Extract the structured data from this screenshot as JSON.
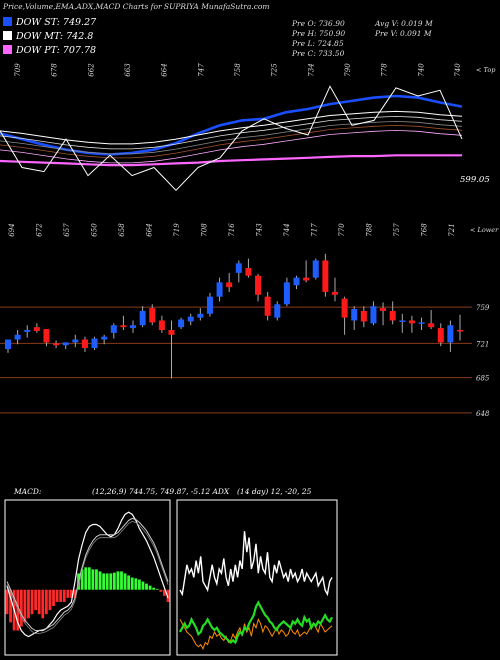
{
  "header": {
    "title": "Price,Volume,EMA,ADX,MACD Charts for SUPRIYA MunafaSutra.com"
  },
  "legend": [
    {
      "label": "DOW ST: 749.27",
      "color": "#1a4fff"
    },
    {
      "label": "DOW MT: 742.8",
      "color": "#ffffff"
    },
    {
      "label": "DOW PT: 707.78",
      "color": "#ff66ff"
    }
  ],
  "quote": {
    "open": "Pre   O: 736.90",
    "high": "Pre   H: 750.90",
    "low": "Pre   L: 724.85",
    "close": "Pre   C: 733.50",
    "avg_vol": "Avg V: 0.019 M",
    "pre_vol": "Pre   V: 0.091 M"
  },
  "upper_right_label": "< Top",
  "lower_right_label": "< Lower",
  "ema_last_label": "599.05",
  "macd_label": "MACD:",
  "macd_text": "(12,26,9) 744.75, 749.87, -5.12 ADX",
  "adx_text": "(14 day) 12, -20, 25",
  "chart_data": [
    {
      "type": "line",
      "name": "ema",
      "top_labels": [
        "709",
        "678",
        "662",
        "663",
        "664",
        "747",
        "758",
        "725",
        "734",
        "790",
        "778",
        "740",
        "740"
      ],
      "series": [
        {
          "name": "DOW ST",
          "color": "#1a4fff",
          "values": [
            742,
            735,
            728,
            722,
            718,
            716,
            718,
            722,
            730,
            742,
            752,
            758,
            760,
            768,
            772,
            778,
            782,
            786,
            788,
            786,
            780,
            775
          ]
        },
        {
          "name": "DOW MT",
          "color": "#ffffff",
          "values": [
            745,
            742,
            738,
            734,
            731,
            729,
            729,
            731,
            735,
            740,
            745,
            749,
            752,
            756,
            760,
            764,
            766,
            768,
            769,
            768,
            765,
            763
          ]
        },
        {
          "name": "DOW PT",
          "color": "#ff66ff",
          "values": [
            708,
            707,
            706,
            705,
            704,
            703,
            703,
            704,
            705,
            706,
            708,
            709,
            710,
            711,
            712,
            713,
            714,
            714,
            715,
            715,
            715,
            715
          ]
        },
        {
          "name": "price",
          "color": "#ffffff",
          "values": [
            745,
            700,
            695,
            735,
            690,
            715,
            690,
            700,
            672,
            700,
            712,
            745,
            760,
            748,
            740,
            800,
            752,
            758,
            798,
            788,
            795,
            735
          ]
        }
      ],
      "ylim": [
        660,
        820
      ]
    },
    {
      "type": "candlestick",
      "name": "price",
      "top_labels": [
        "694",
        "672",
        "657",
        "650",
        "658",
        "664",
        "719",
        "708",
        "716",
        "743",
        "744",
        "717",
        "770",
        "788",
        "757",
        "768",
        "721"
      ],
      "levels": [
        {
          "value": 759,
          "label": "759"
        },
        {
          "value": 721,
          "label": "721"
        },
        {
          "value": 685,
          "label": "685"
        },
        {
          "value": 648,
          "label": "648"
        }
      ],
      "candles": [
        [
          715,
          725,
          711,
          725
        ],
        [
          725,
          735,
          720,
          730
        ],
        [
          733,
          740,
          727,
          735
        ],
        [
          738,
          742,
          732,
          734
        ],
        [
          736,
          736,
          718,
          722
        ],
        [
          721,
          724,
          716,
          719
        ],
        [
          719,
          722,
          715,
          722
        ],
        [
          722,
          730,
          717,
          725
        ],
        [
          725,
          728,
          712,
          716
        ],
        [
          716,
          728,
          714,
          726
        ],
        [
          725,
          730,
          720,
          728
        ],
        [
          732,
          742,
          726,
          740
        ],
        [
          740,
          750,
          735,
          738
        ],
        [
          737,
          745,
          732,
          740
        ],
        [
          740,
          760,
          738,
          755
        ],
        [
          758,
          762,
          740,
          743
        ],
        [
          745,
          750,
          732,
          735
        ],
        [
          735,
          745,
          684,
          730
        ],
        [
          738,
          748,
          736,
          746
        ],
        [
          744,
          752,
          740,
          749
        ],
        [
          748,
          758,
          745,
          752
        ],
        [
          752,
          774,
          749,
          770
        ],
        [
          770,
          790,
          765,
          785
        ],
        [
          785,
          795,
          775,
          780
        ],
        [
          795,
          808,
          785,
          805
        ],
        [
          800,
          810,
          790,
          792
        ],
        [
          792,
          794,
          765,
          772
        ],
        [
          770,
          775,
          745,
          750
        ],
        [
          748,
          765,
          745,
          762
        ],
        [
          762,
          790,
          760,
          785
        ],
        [
          782,
          792,
          778,
          790
        ],
        [
          790,
          808,
          785,
          787
        ],
        [
          790,
          810,
          788,
          808
        ],
        [
          808,
          815,
          770,
          775
        ],
        [
          775,
          790,
          765,
          772
        ],
        [
          768,
          770,
          730,
          748
        ],
        [
          745,
          760,
          735,
          757
        ],
        [
          755,
          760,
          738,
          744
        ],
        [
          742,
          765,
          740,
          760
        ],
        [
          758,
          764,
          740,
          755
        ],
        [
          755,
          765,
          741,
          745
        ],
        [
          745,
          752,
          732,
          745
        ],
        [
          745,
          750,
          732,
          742
        ],
        [
          742,
          748,
          735,
          743
        ],
        [
          742,
          756,
          736,
          738
        ],
        [
          737,
          742,
          718,
          722
        ],
        [
          722,
          745,
          712,
          740
        ],
        [
          735,
          751,
          724,
          734
        ]
      ],
      "ylim": [
        630,
        840
      ]
    },
    {
      "type": "bar",
      "name": "macd",
      "histogram": [
        -0.6,
        -0.8,
        -1,
        -1,
        -0.9,
        -0.8,
        -0.7,
        -0.6,
        -0.5,
        -0.6,
        -0.7,
        -0.6,
        -0.5,
        -0.4,
        -0.3,
        -0.3,
        -0.3,
        -0.2,
        -0.2,
        -0.2,
        0.4,
        0.5,
        0.55,
        0.55,
        0.5,
        0.5,
        0.45,
        0.4,
        0.4,
        0.4,
        0.42,
        0.45,
        0.45,
        0.4,
        0.35,
        0.3,
        0.28,
        0.25,
        0.2,
        0.15,
        0.1,
        0.05,
        0.02,
        -0.05,
        -0.15,
        -0.3
      ],
      "macd_line": [
        0.1,
        -0.2,
        -0.5,
        -0.8,
        -1,
        -1.1,
        -1.15,
        -1.1,
        -1.05,
        -1,
        -1,
        -0.95,
        -0.85,
        -0.75,
        -0.6,
        -0.5,
        -0.45,
        -0.4,
        -0.3,
        0.2,
        0.75,
        1.1,
        1.4,
        1.55,
        1.6,
        1.6,
        1.55,
        1.45,
        1.35,
        1.3,
        1.35,
        1.5,
        1.7,
        1.85,
        1.9,
        1.85,
        1.7,
        1.5,
        1.35,
        1.2,
        1,
        0.8,
        0.55,
        0.3,
        0.05,
        -0.2
      ],
      "signal_line": [
        0.2,
        0,
        -0.2,
        -0.4,
        -0.6,
        -0.75,
        -0.85,
        -0.95,
        -1,
        -1,
        -0.98,
        -0.95,
        -0.9,
        -0.85,
        -0.75,
        -0.65,
        -0.55,
        -0.5,
        -0.4,
        -0.2,
        0.2,
        0.55,
        0.85,
        1.05,
        1.2,
        1.3,
        1.35,
        1.35,
        1.35,
        1.35,
        1.35,
        1.4,
        1.5,
        1.6,
        1.7,
        1.75,
        1.72,
        1.65,
        1.55,
        1.45,
        1.3,
        1.15,
        0.95,
        0.7,
        0.45,
        0.2
      ],
      "ylim": [
        -1.6,
        2.2
      ]
    },
    {
      "type": "line",
      "name": "adx",
      "series": [
        {
          "name": "+DI",
          "color": "#ffffff",
          "values": [
            30,
            28,
            35,
            42,
            38,
            40,
            36,
            44,
            38,
            46,
            34,
            32,
            30,
            36,
            42,
            36,
            33,
            40,
            38,
            45,
            36,
            32,
            40,
            34,
            42,
            36,
            44,
            40,
            58,
            48,
            55,
            40,
            44,
            52,
            38,
            46,
            40,
            38,
            48,
            36,
            34,
            42,
            38,
            44,
            40,
            36,
            38,
            34,
            40,
            36,
            38,
            34,
            36,
            40,
            34,
            38,
            36,
            34,
            36,
            38,
            32,
            34,
            36,
            30,
            28,
            34,
            36
          ]
        },
        {
          "name": "-DI",
          "color": "#ff8c00",
          "values": [
            16,
            14,
            12,
            10,
            9,
            8,
            6,
            4,
            3,
            4,
            2,
            5,
            4,
            8,
            7,
            10,
            8,
            9,
            7,
            6,
            8,
            5,
            6,
            9,
            7,
            10,
            12,
            8,
            14,
            10,
            12,
            8,
            14,
            12,
            16,
            14,
            10,
            13,
            12,
            10,
            8,
            10,
            12,
            9,
            11,
            10,
            8,
            9,
            12,
            10,
            9,
            11,
            8,
            9,
            10,
            9,
            11,
            13,
            14,
            12,
            10,
            14,
            12,
            10,
            11,
            12,
            13
          ]
        },
        {
          "name": "ADX",
          "color": "#22dd22",
          "values": [
            10,
            12,
            14,
            12,
            13,
            16,
            14,
            12,
            9,
            10,
            13,
            14,
            16,
            14,
            12,
            11,
            12,
            10,
            9,
            8,
            7,
            6,
            5,
            6,
            5,
            8,
            10,
            9,
            12,
            11,
            14,
            16,
            18,
            22,
            24,
            22,
            20,
            18,
            17,
            15,
            14,
            12,
            11,
            13,
            14,
            15,
            14,
            13,
            12,
            15,
            14,
            16,
            14,
            13,
            17,
            15,
            16,
            12,
            14,
            13,
            15,
            14,
            16,
            18,
            16,
            15,
            17
          ]
        }
      ],
      "ylim": [
        0,
        70
      ]
    }
  ]
}
